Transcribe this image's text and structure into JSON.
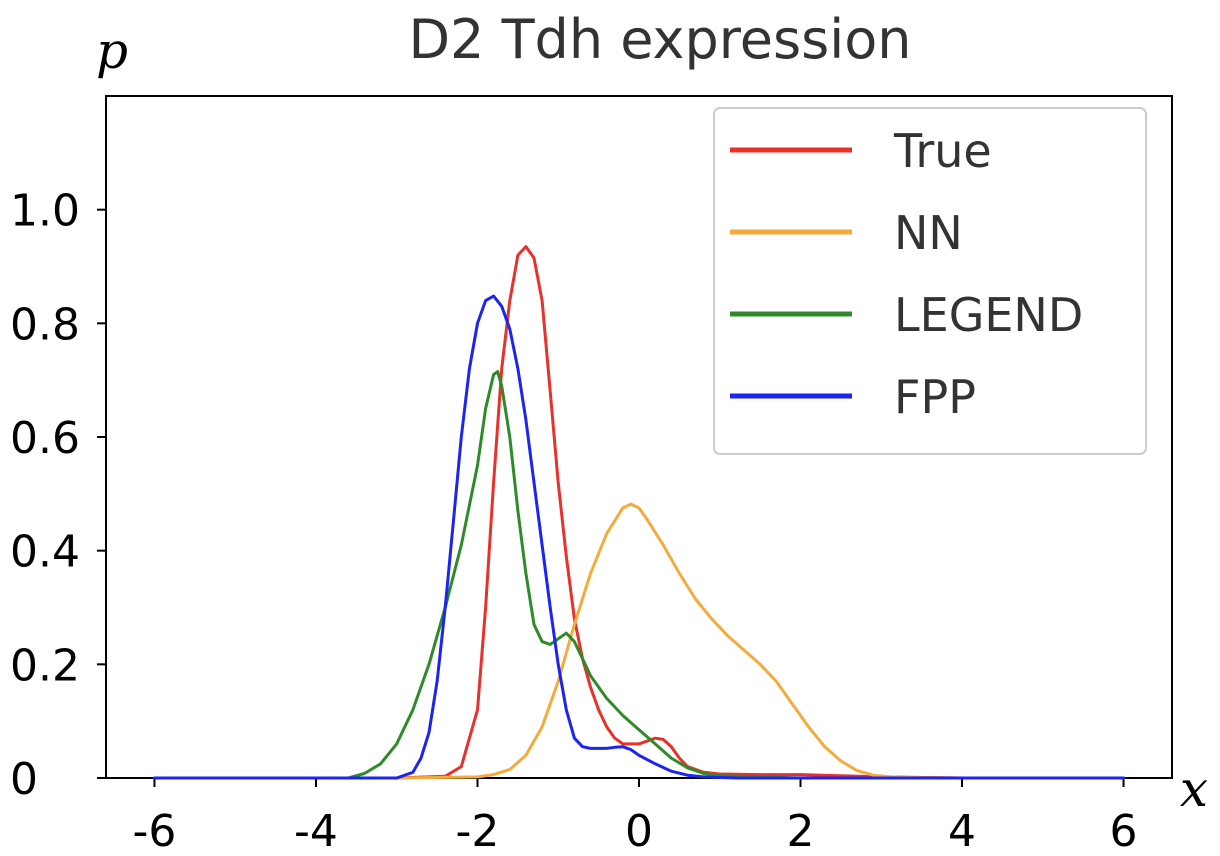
{
  "chart_data": {
    "type": "line",
    "title": "D2 Tdh expression",
    "xlabel": "x",
    "ylabel": "p",
    "xlim": [
      -6.6,
      6.6
    ],
    "ylim": [
      0,
      1.2
    ],
    "xticks": [
      -6,
      -4,
      -2,
      0,
      2,
      4,
      6
    ],
    "xtick_labels": [
      "-6",
      "-4",
      "-2",
      "0",
      "2",
      "4",
      "6"
    ],
    "yticks": [
      0,
      0.2,
      0.4,
      0.6,
      0.8,
      1.0
    ],
    "ytick_labels": [
      "0",
      "0.2",
      "0.4",
      "0.6",
      "0.8",
      "1.0"
    ],
    "grid": false,
    "legend_position": "top-right",
    "series": [
      {
        "name": "True",
        "color": "#e8312a",
        "points": [
          [
            -6,
            0
          ],
          [
            -3,
            0
          ],
          [
            -2.4,
            0.003
          ],
          [
            -2.2,
            0.02
          ],
          [
            -2.0,
            0.12
          ],
          [
            -1.9,
            0.3
          ],
          [
            -1.8,
            0.52
          ],
          [
            -1.7,
            0.72
          ],
          [
            -1.6,
            0.84
          ],
          [
            -1.5,
            0.92
          ],
          [
            -1.4,
            0.935
          ],
          [
            -1.3,
            0.915
          ],
          [
            -1.2,
            0.84
          ],
          [
            -1.1,
            0.68
          ],
          [
            -1.0,
            0.52
          ],
          [
            -0.9,
            0.39
          ],
          [
            -0.8,
            0.28
          ],
          [
            -0.7,
            0.21
          ],
          [
            -0.6,
            0.16
          ],
          [
            -0.5,
            0.12
          ],
          [
            -0.4,
            0.09
          ],
          [
            -0.3,
            0.07
          ],
          [
            -0.2,
            0.06
          ],
          [
            -0.1,
            0.06
          ],
          [
            0.0,
            0.06
          ],
          [
            0.1,
            0.065
          ],
          [
            0.2,
            0.07
          ],
          [
            0.3,
            0.068
          ],
          [
            0.4,
            0.055
          ],
          [
            0.5,
            0.035
          ],
          [
            0.6,
            0.02
          ],
          [
            0.8,
            0.01
          ],
          [
            1.0,
            0.007
          ],
          [
            1.5,
            0.006
          ],
          [
            2.0,
            0.006
          ],
          [
            2.5,
            0.004
          ],
          [
            3.0,
            0.002
          ],
          [
            4,
            0
          ],
          [
            6,
            0
          ]
        ]
      },
      {
        "name": "NN",
        "color": "#f4ab3c",
        "points": [
          [
            -6,
            0
          ],
          [
            -3,
            0
          ],
          [
            -2.0,
            0.002
          ],
          [
            -1.8,
            0.006
          ],
          [
            -1.6,
            0.015
          ],
          [
            -1.4,
            0.04
          ],
          [
            -1.2,
            0.09
          ],
          [
            -1.0,
            0.17
          ],
          [
            -0.8,
            0.27
          ],
          [
            -0.6,
            0.36
          ],
          [
            -0.4,
            0.43
          ],
          [
            -0.2,
            0.475
          ],
          [
            -0.1,
            0.482
          ],
          [
            0.0,
            0.475
          ],
          [
            0.1,
            0.455
          ],
          [
            0.3,
            0.41
          ],
          [
            0.5,
            0.36
          ],
          [
            0.7,
            0.315
          ],
          [
            0.9,
            0.28
          ],
          [
            1.1,
            0.25
          ],
          [
            1.3,
            0.225
          ],
          [
            1.5,
            0.2
          ],
          [
            1.7,
            0.17
          ],
          [
            1.9,
            0.13
          ],
          [
            2.1,
            0.09
          ],
          [
            2.3,
            0.055
          ],
          [
            2.5,
            0.03
          ],
          [
            2.7,
            0.013
          ],
          [
            2.9,
            0.005
          ],
          [
            3.2,
            0.001
          ],
          [
            4,
            0
          ],
          [
            6,
            0
          ]
        ]
      },
      {
        "name": "LEGEND",
        "color": "#2f8a2a",
        "points": [
          [
            -6,
            0
          ],
          [
            -3.6,
            0
          ],
          [
            -3.4,
            0.008
          ],
          [
            -3.2,
            0.025
          ],
          [
            -3.0,
            0.06
          ],
          [
            -2.8,
            0.12
          ],
          [
            -2.6,
            0.2
          ],
          [
            -2.4,
            0.3
          ],
          [
            -2.2,
            0.41
          ],
          [
            -2.0,
            0.55
          ],
          [
            -1.9,
            0.65
          ],
          [
            -1.8,
            0.71
          ],
          [
            -1.75,
            0.715
          ],
          [
            -1.7,
            0.69
          ],
          [
            -1.6,
            0.6
          ],
          [
            -1.5,
            0.47
          ],
          [
            -1.4,
            0.36
          ],
          [
            -1.3,
            0.27
          ],
          [
            -1.2,
            0.24
          ],
          [
            -1.1,
            0.235
          ],
          [
            -1.0,
            0.245
          ],
          [
            -0.9,
            0.255
          ],
          [
            -0.8,
            0.24
          ],
          [
            -0.7,
            0.21
          ],
          [
            -0.6,
            0.18
          ],
          [
            -0.4,
            0.14
          ],
          [
            -0.2,
            0.11
          ],
          [
            0.0,
            0.085
          ],
          [
            0.2,
            0.06
          ],
          [
            0.4,
            0.035
          ],
          [
            0.6,
            0.018
          ],
          [
            0.8,
            0.008
          ],
          [
            1.0,
            0.004
          ],
          [
            1.5,
            0.002
          ],
          [
            2,
            0
          ],
          [
            6,
            0
          ]
        ]
      },
      {
        "name": "FPP",
        "color": "#1c24f2",
        "points": [
          [
            -6,
            0
          ],
          [
            -3,
            0
          ],
          [
            -2.8,
            0.01
          ],
          [
            -2.7,
            0.035
          ],
          [
            -2.6,
            0.08
          ],
          [
            -2.5,
            0.17
          ],
          [
            -2.4,
            0.3
          ],
          [
            -2.3,
            0.45
          ],
          [
            -2.2,
            0.6
          ],
          [
            -2.1,
            0.72
          ],
          [
            -2.0,
            0.8
          ],
          [
            -1.9,
            0.84
          ],
          [
            -1.8,
            0.848
          ],
          [
            -1.7,
            0.83
          ],
          [
            -1.6,
            0.79
          ],
          [
            -1.5,
            0.72
          ],
          [
            -1.4,
            0.63
          ],
          [
            -1.3,
            0.52
          ],
          [
            -1.2,
            0.41
          ],
          [
            -1.1,
            0.3
          ],
          [
            -1.0,
            0.2
          ],
          [
            -0.9,
            0.12
          ],
          [
            -0.8,
            0.07
          ],
          [
            -0.7,
            0.055
          ],
          [
            -0.6,
            0.052
          ],
          [
            -0.5,
            0.052
          ],
          [
            -0.4,
            0.052
          ],
          [
            -0.3,
            0.054
          ],
          [
            -0.2,
            0.055
          ],
          [
            -0.1,
            0.05
          ],
          [
            0.0,
            0.04
          ],
          [
            0.2,
            0.025
          ],
          [
            0.4,
            0.012
          ],
          [
            0.6,
            0.005
          ],
          [
            0.8,
            0.002
          ],
          [
            1.2,
            0
          ],
          [
            6,
            0
          ]
        ]
      }
    ]
  }
}
